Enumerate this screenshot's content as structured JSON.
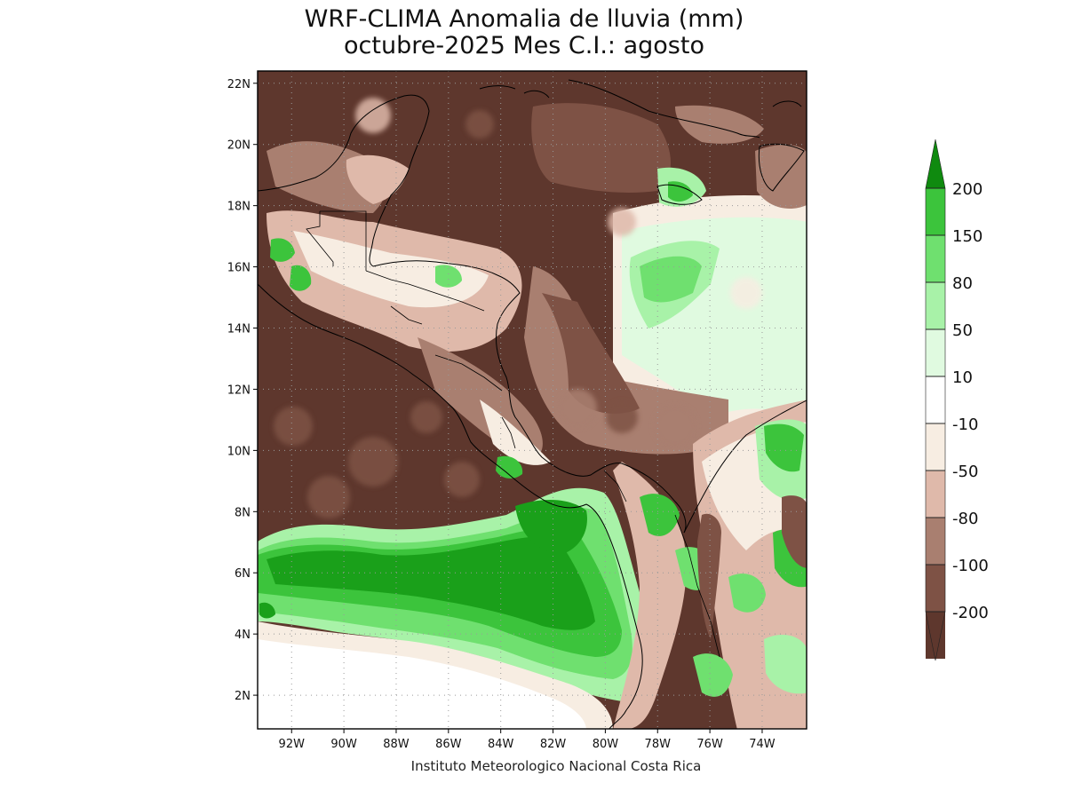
{
  "title_line1": "WRF-CLIMA Anomalia de lluvia (mm)",
  "title_line2": "octubre-2025 Mes C.I.: agosto",
  "footer": "Instituto Meteorologico Nacional Costa Rica",
  "map": {
    "lat_ticks": [
      {
        "value": 22,
        "label": "22N"
      },
      {
        "value": 20,
        "label": "20N"
      },
      {
        "value": 18,
        "label": "18N"
      },
      {
        "value": 16,
        "label": "16N"
      },
      {
        "value": 14,
        "label": "14N"
      },
      {
        "value": 12,
        "label": "12N"
      },
      {
        "value": 10,
        "label": "10N"
      },
      {
        "value": 8,
        "label": "8N"
      },
      {
        "value": 6,
        "label": "6N"
      },
      {
        "value": 4,
        "label": "4N"
      },
      {
        "value": 2,
        "label": "2N"
      }
    ],
    "lon_ticks": [
      {
        "value": -92,
        "label": "92W"
      },
      {
        "value": -90,
        "label": "90W"
      },
      {
        "value": -88,
        "label": "88W"
      },
      {
        "value": -86,
        "label": "86W"
      },
      {
        "value": -84,
        "label": "84W"
      },
      {
        "value": -82,
        "label": "82W"
      },
      {
        "value": -80,
        "label": "80W"
      },
      {
        "value": -78,
        "label": "78W"
      },
      {
        "value": -76,
        "label": "76W"
      },
      {
        "value": -74,
        "label": "74W"
      }
    ],
    "lon_range": [
      -93.3,
      -72.3
    ],
    "lat_range": [
      0.9,
      22.4
    ],
    "grid": "dotted"
  },
  "legend": {
    "bins": [
      {
        "color": "#1aa01a"
      },
      {
        "color": "#3cc43c"
      },
      {
        "color": "#6fe06f"
      },
      {
        "color": "#a8f2a8"
      },
      {
        "color": "#e0fae0"
      },
      {
        "color": "#ffffff"
      },
      {
        "color": "#f7ede2"
      },
      {
        "color": "#dfb9aa"
      },
      {
        "color": "#a97f70"
      },
      {
        "color": "#7e5245"
      },
      {
        "color": "#5e372d"
      }
    ],
    "boundaries": [
      "200",
      "150",
      "80",
      "50",
      "10",
      "-10",
      "-50",
      "-80",
      "-100",
      "-200"
    ],
    "top_arrow_color": "#0f8a0f",
    "bottom_arrow_color": "#4a2a22"
  }
}
